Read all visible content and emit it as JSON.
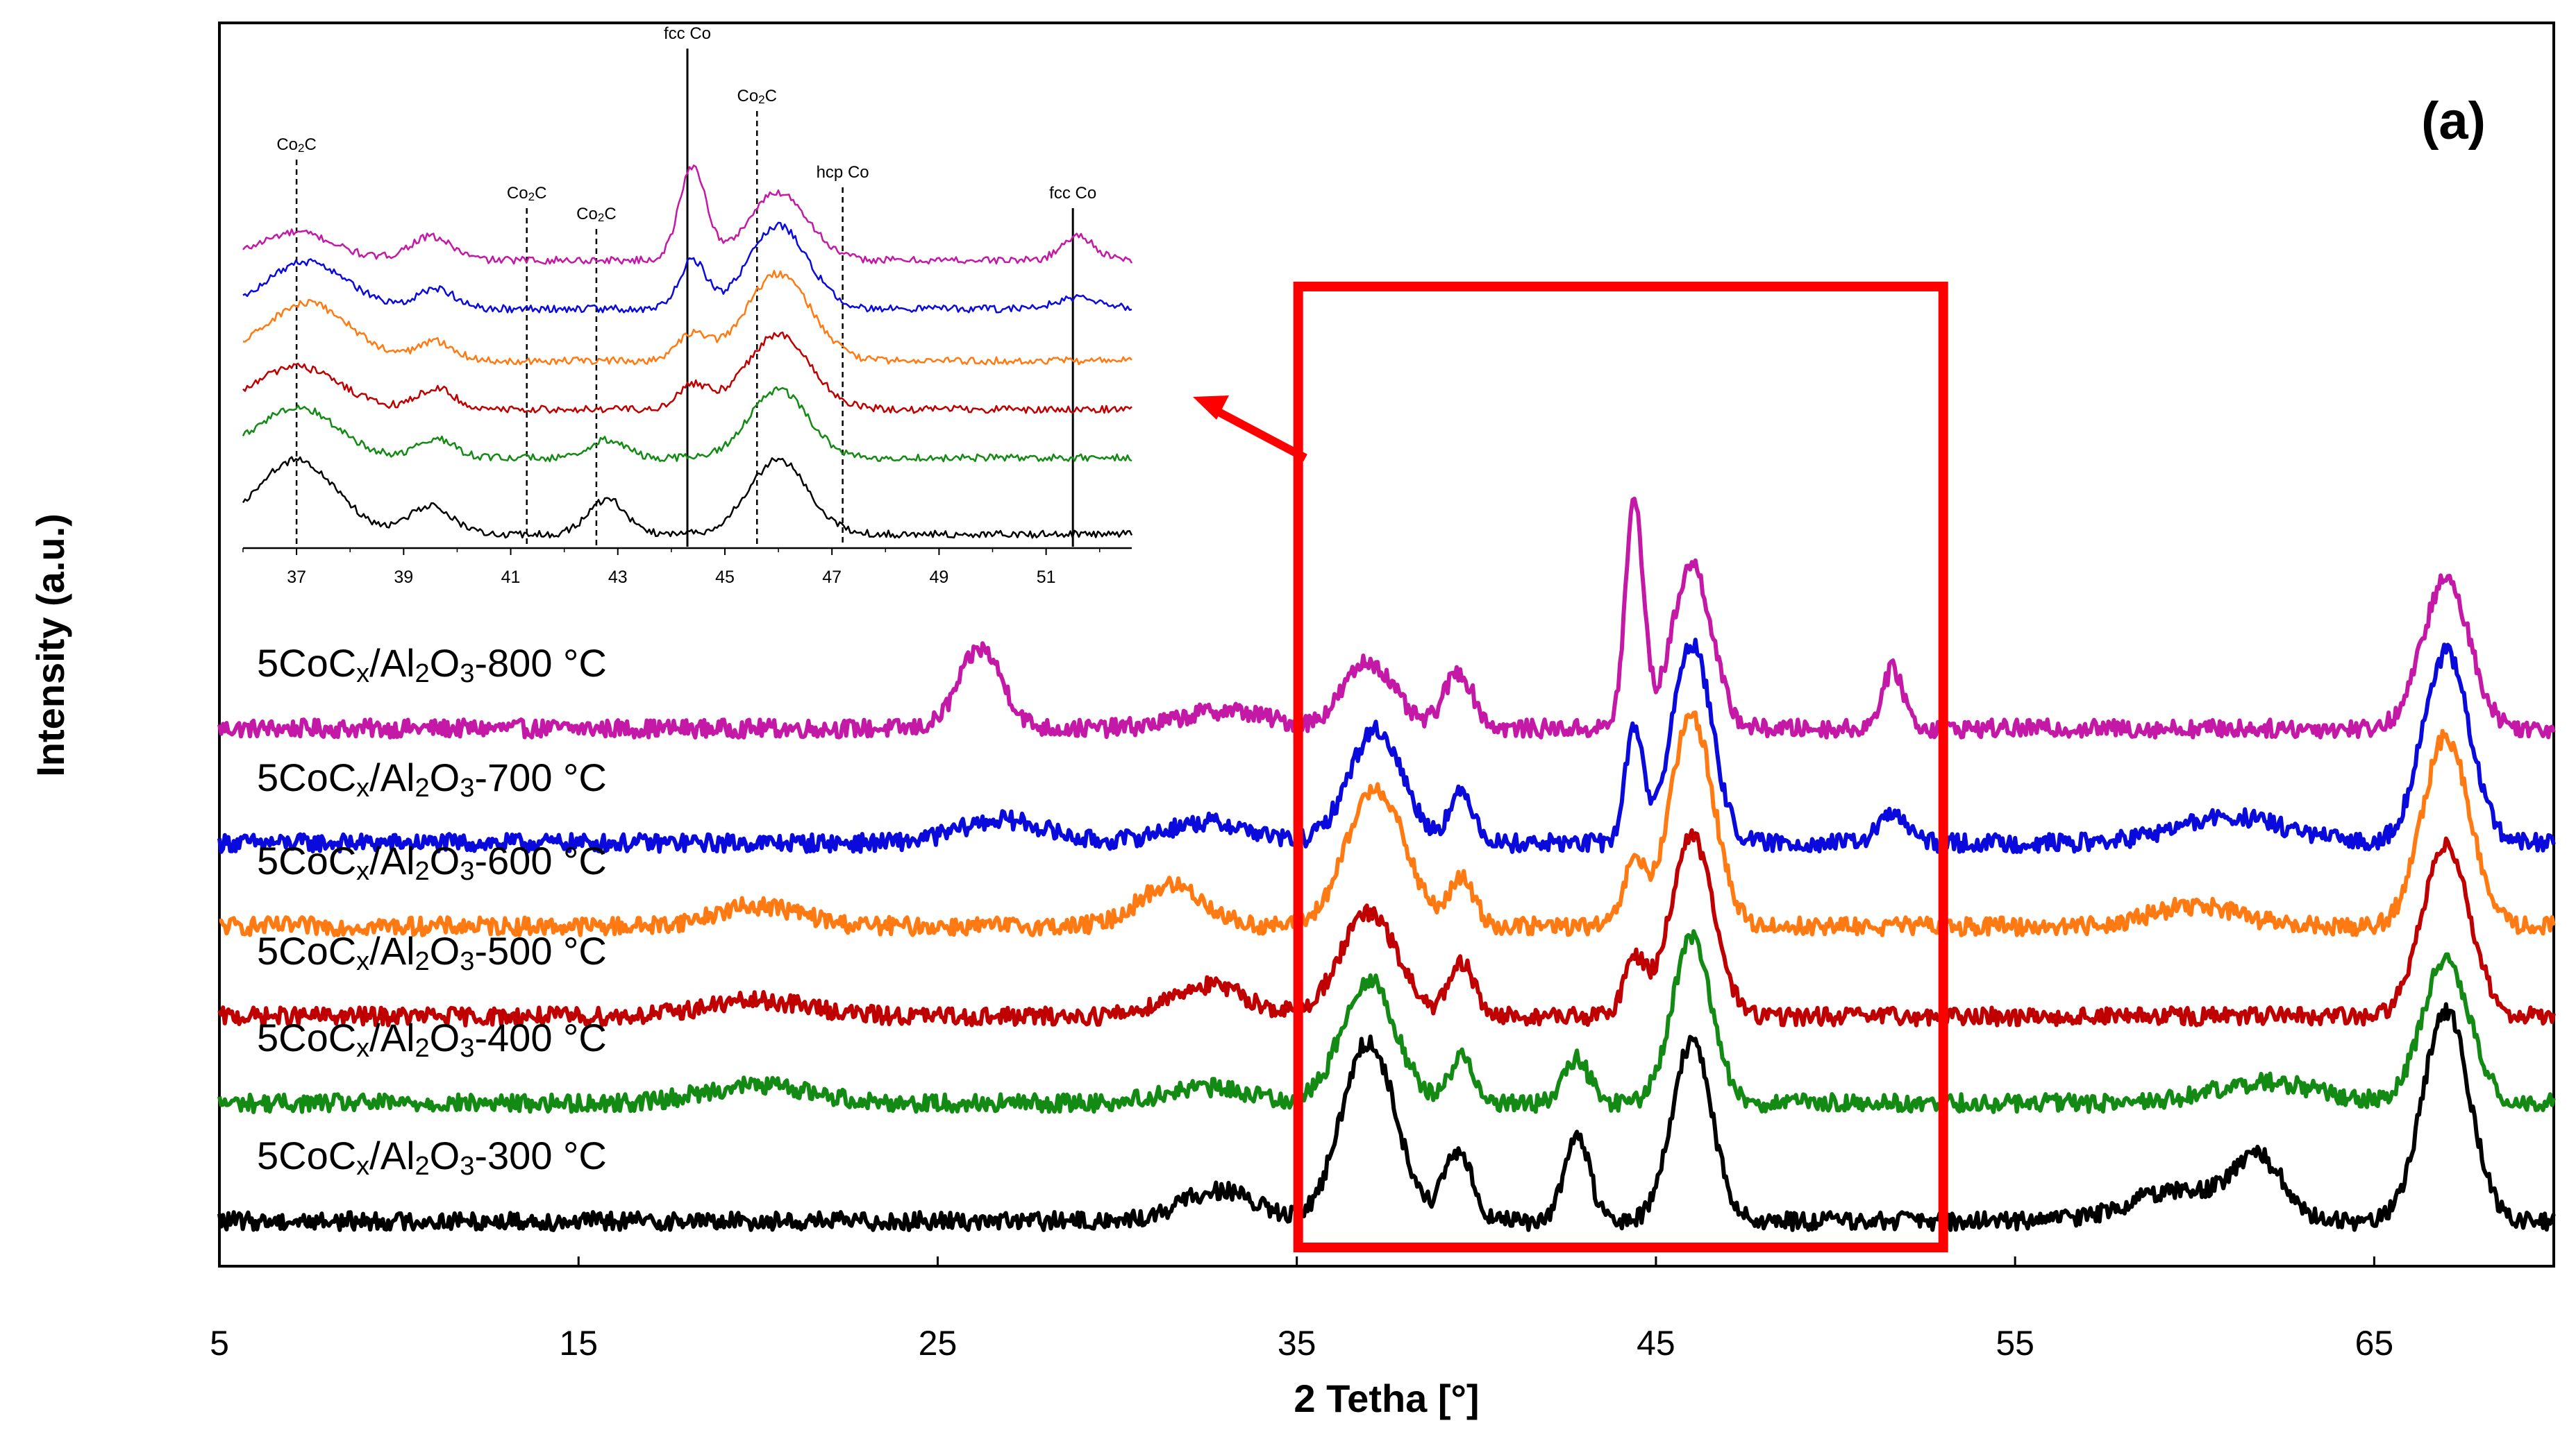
{
  "chart_data": {
    "type": "line",
    "title": "",
    "panel_label": "(a)",
    "xlabel": "2 Tetha [°]",
    "ylabel": "Intensity (a.u.)",
    "xlim": [
      5,
      70
    ],
    "xticks": [
      "5",
      "15",
      "25",
      "35",
      "45",
      "55",
      "65"
    ],
    "colors": {
      "800": "#c418a6",
      "700": "#0a0adc",
      "600": "#ff7a12",
      "500": "#c00000",
      "400": "#138a13",
      "300": "#000000"
    },
    "series": [
      {
        "key": "800",
        "name_prefix": "5CoC",
        "name_sub_x": "x",
        "name_mid": "/Al",
        "name_sub_2": "2",
        "name_o": "O",
        "name_sub_3": "3",
        "name_suffix": "-800 °C",
        "baseline": 0,
        "noise": 0.35,
        "peaks": [
          [
            26.2,
            3.1,
            0.6
          ],
          [
            33.0,
            0.7,
            1.2
          ],
          [
            37.0,
            2.6,
            0.7
          ],
          [
            39.5,
            2.2,
            0.4
          ],
          [
            44.4,
            8.8,
            0.25
          ],
          [
            46.0,
            6.4,
            0.55
          ],
          [
            51.6,
            2.3,
            0.3
          ],
          [
            67.0,
            5.8,
            0.65
          ]
        ]
      },
      {
        "key": "700",
        "name_prefix": "5CoC",
        "name_sub_x": "x",
        "name_mid": "/Al",
        "name_sub_2": "2",
        "name_o": "O",
        "name_sub_3": "3",
        "name_suffix": "-700 °C",
        "baseline": 0,
        "noise": 0.35,
        "peaks": [
          [
            26.8,
            0.9,
            1.2
          ],
          [
            32.5,
            0.8,
            1.2
          ],
          [
            37.2,
            4.4,
            0.75
          ],
          [
            39.6,
            1.9,
            0.35
          ],
          [
            44.4,
            4.5,
            0.25
          ],
          [
            46.0,
            7.8,
            0.55
          ],
          [
            51.6,
            1.1,
            0.4
          ],
          [
            61.0,
            1.0,
            1.5
          ],
          [
            67.0,
            7.4,
            0.65
          ]
        ]
      },
      {
        "key": "600",
        "name_prefix": "5CoC",
        "name_sub_x": "x",
        "name_mid": "/Al",
        "name_sub_2": "2",
        "name_o": "O",
        "name_sub_3": "3",
        "name_suffix": "-600 °C",
        "baseline": 0,
        "noise": 0.35,
        "peaks": [
          [
            20.0,
            0.8,
            1.2
          ],
          [
            31.5,
            1.6,
            0.9
          ],
          [
            37.2,
            5.4,
            0.8
          ],
          [
            39.6,
            1.8,
            0.35
          ],
          [
            44.4,
            2.4,
            0.3
          ],
          [
            46.0,
            8.2,
            0.6
          ],
          [
            60.0,
            0.8,
            1.2
          ],
          [
            67.0,
            7.4,
            0.65
          ]
        ]
      },
      {
        "key": "500",
        "name_prefix": "5CoC",
        "name_sub_x": "x",
        "name_mid": "/Al",
        "name_sub_2": "2",
        "name_o": "O",
        "name_sub_3": "3",
        "name_suffix": "-500 °C",
        "baseline": 0,
        "noise": 0.35,
        "peaks": [
          [
            20.0,
            0.6,
            1.5
          ],
          [
            32.5,
            1.2,
            1.1
          ],
          [
            37.0,
            4.0,
            0.8
          ],
          [
            39.6,
            2.0,
            0.35
          ],
          [
            44.4,
            2.2,
            0.3
          ],
          [
            46.0,
            7.0,
            0.6
          ],
          [
            67.0,
            6.8,
            0.65
          ]
        ]
      },
      {
        "key": "400",
        "name_prefix": "5CoC",
        "name_sub_x": "x",
        "name_mid": "/Al",
        "name_sub_2": "2",
        "name_o": "O",
        "name_sub_3": "3",
        "name_suffix": "-400 °C",
        "baseline": 0,
        "noise": 0.35,
        "peaks": [
          [
            20.0,
            0.7,
            1.5
          ],
          [
            32.5,
            0.6,
            1.2
          ],
          [
            37.0,
            4.8,
            0.75
          ],
          [
            39.6,
            1.8,
            0.35
          ],
          [
            42.8,
            1.7,
            0.35
          ],
          [
            46.0,
            6.4,
            0.55
          ],
          [
            62.0,
            0.8,
            1.5
          ],
          [
            67.0,
            5.6,
            0.65
          ]
        ]
      },
      {
        "key": "300",
        "name_prefix": "5CoC",
        "name_sub_x": "x",
        "name_mid": "/Al",
        "name_sub_2": "2",
        "name_o": "O",
        "name_sub_3": "3",
        "name_suffix": "-300 °C",
        "baseline": 0,
        "noise": 0.35,
        "peaks": [
          [
            32.8,
            1.2,
            1.0
          ],
          [
            37.0,
            7.0,
            0.75
          ],
          [
            39.5,
            2.6,
            0.4
          ],
          [
            42.8,
            3.3,
            0.35
          ],
          [
            46.0,
            7.0,
            0.55
          ],
          [
            59.5,
            1.2,
            1.3
          ],
          [
            61.8,
            2.3,
            0.7
          ],
          [
            67.0,
            8.2,
            0.65
          ]
        ]
      }
    ],
    "zoom_window": {
      "x_from": 35,
      "x_to": 53,
      "color": "#ff0000"
    },
    "inset": {
      "xlim": [
        36,
        52.6
      ],
      "xticks": [
        "37",
        "39",
        "41",
        "43",
        "45",
        "47",
        "49",
        "51"
      ],
      "annotations": [
        {
          "x": 37,
          "label": "Co",
          "sub": "2",
          "suffix": "C",
          "style": "dashed"
        },
        {
          "x": 41.3,
          "label": "Co",
          "sub": "2",
          "suffix": "C",
          "style": "dashed"
        },
        {
          "x": 42.6,
          "label": "Co",
          "sub": "2",
          "suffix": "C",
          "style": "dashed"
        },
        {
          "x": 44.3,
          "label": "fcc Co",
          "sub": "",
          "suffix": "",
          "style": "solid"
        },
        {
          "x": 45.6,
          "label": "Co",
          "sub": "2",
          "suffix": "C",
          "style": "dashed"
        },
        {
          "x": 47.2,
          "label": "hcp Co",
          "sub": "",
          "suffix": "",
          "style": "dashed"
        },
        {
          "x": 51.5,
          "label": "fcc Co",
          "sub": "",
          "suffix": "",
          "style": "solid"
        }
      ]
    }
  }
}
